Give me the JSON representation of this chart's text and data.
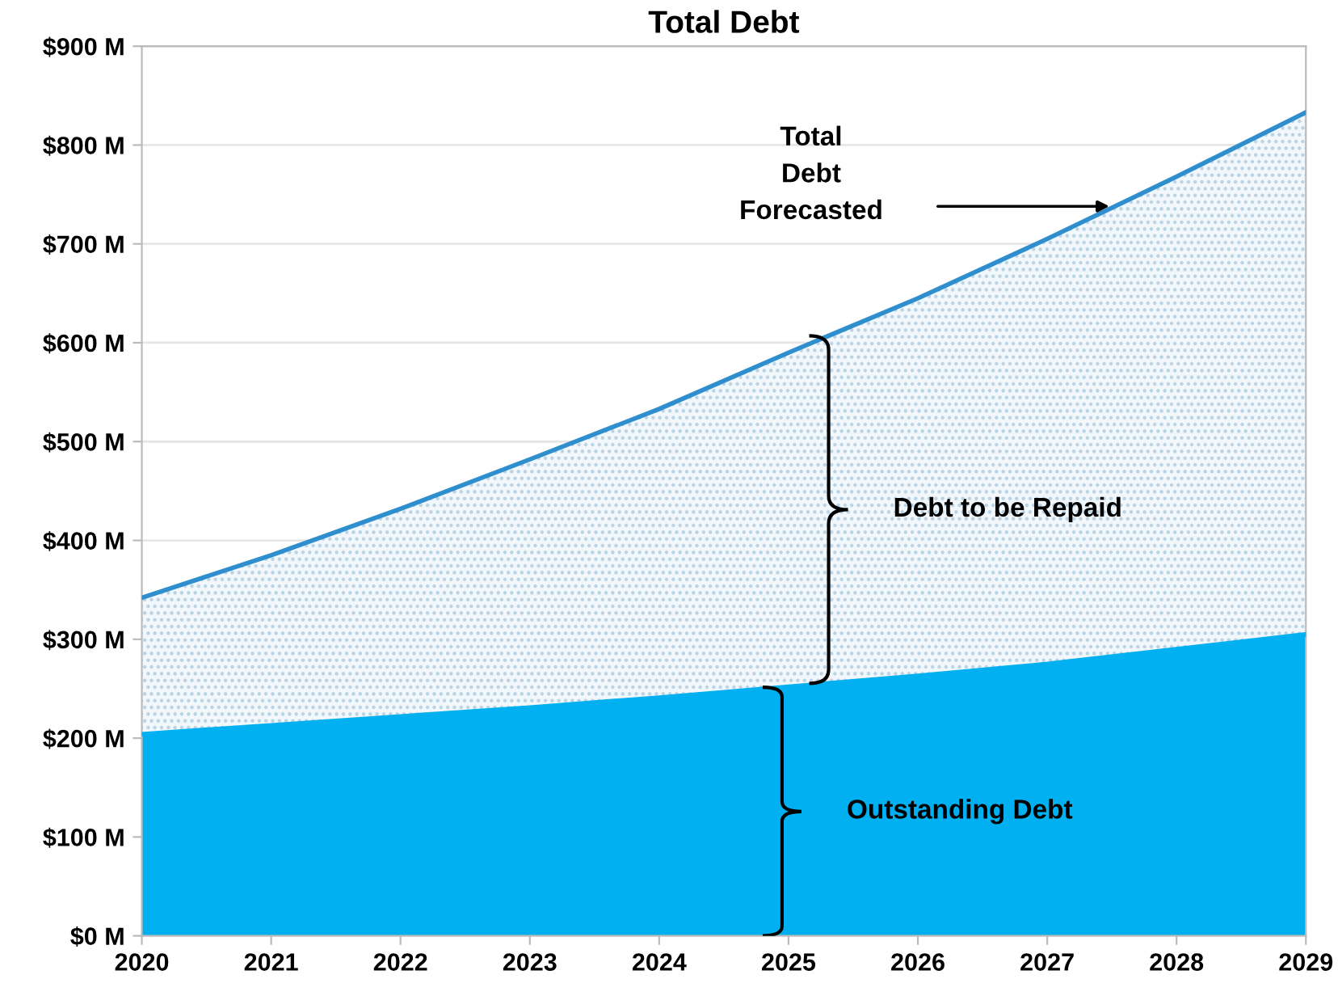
{
  "chart_data": {
    "type": "area",
    "title": "Total Debt",
    "x": [
      2020,
      2021,
      2022,
      2023,
      2024,
      2025,
      2026,
      2027,
      2028,
      2029
    ],
    "series": [
      {
        "color": "#2f8fce",
        "values": [
          342,
          385,
          432,
          482,
          533,
          590,
          645,
          705,
          768,
          833
        ]
      },
      {
        "color": "#00b0f0",
        "values": [
          204,
          213,
          222,
          231,
          241,
          252,
          263,
          275,
          290,
          305
        ]
      }
    ],
    "xlim": [
      2020,
      2029
    ],
    "xticks": [
      2020,
      2021,
      2022,
      2023,
      2024,
      2025,
      2026,
      2027,
      2028,
      2029
    ],
    "ylim": [
      0,
      900
    ],
    "yticks": [
      {
        "value": 0,
        "label": "$0 M"
      },
      {
        "value": 100,
        "label": "$100 M"
      },
      {
        "value": 200,
        "label": "$200 M"
      },
      {
        "value": 300,
        "label": "$300 M"
      },
      {
        "value": 400,
        "label": "$400 M"
      },
      {
        "value": 500,
        "label": "$500 M"
      },
      {
        "value": 600,
        "label": "$600 M"
      },
      {
        "value": 700,
        "label": "$700 M"
      },
      {
        "value": 800,
        "label": "$800 M"
      },
      {
        "value": 900,
        "label": "$900 M"
      }
    ],
    "grid": "y",
    "annotations": [
      "Total\nDebt\nForecasted",
      "Debt to be Repaid",
      "Outstanding Debt"
    ]
  }
}
